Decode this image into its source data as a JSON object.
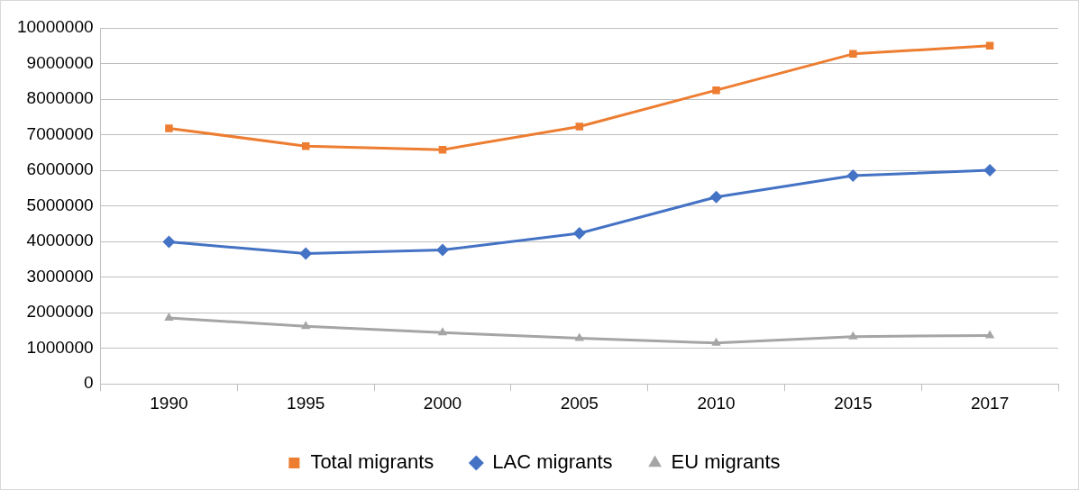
{
  "chart_data": {
    "type": "line",
    "categories": [
      "1990",
      "1995",
      "2000",
      "2005",
      "2010",
      "2015",
      "2017"
    ],
    "series": [
      {
        "name": "Total migrants",
        "color": "#ed7d31",
        "marker": "square",
        "values": [
          7180000,
          6680000,
          6580000,
          7230000,
          8250000,
          9270000,
          9500000
        ]
      },
      {
        "name": "LAC migrants",
        "color": "#4472c4",
        "marker": "diamond",
        "values": [
          3990000,
          3660000,
          3760000,
          4230000,
          5250000,
          5850000,
          6000000
        ]
      },
      {
        "name": "EU migrants",
        "color": "#a5a5a5",
        "marker": "triangle",
        "values": [
          1850000,
          1620000,
          1440000,
          1280000,
          1150000,
          1330000,
          1360000
        ]
      }
    ],
    "ylim": [
      0,
      10000000
    ],
    "yticks": [
      0,
      1000000,
      2000000,
      3000000,
      4000000,
      5000000,
      6000000,
      7000000,
      8000000,
      9000000,
      10000000
    ],
    "grid": "y",
    "legend": "bottom"
  }
}
